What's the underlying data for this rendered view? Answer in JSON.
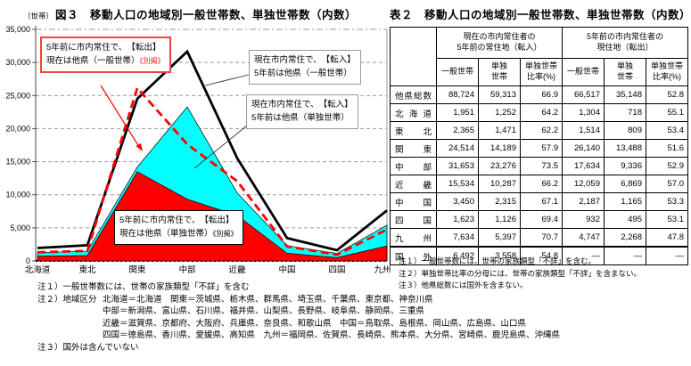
{
  "figure": {
    "unit_label": "（世帯）",
    "title": "図３　移動人口の地域別一般世帯数、単独世帯数（内数）",
    "annotations": {
      "out_general": {
        "line1": "5年前に市内常住で、　【転出】",
        "line2": "現在は他県（一般世帯）",
        "suffix": "《別掲》"
      },
      "in_general": {
        "line1": "現在市内常住で、　【転入】",
        "line2": "5年前は他県（一般世帯）"
      },
      "in_single": {
        "line1": "現在市内常住で、　【転入】",
        "line2": "5年前は他県（単独世帯）"
      },
      "out_single": {
        "line1": "5年前に市内常住で、　【転出】",
        "line2": "現在は他県（単独世帯）",
        "suffix": "《別掲》"
      }
    },
    "notes": {
      "note1": "注１）一般世帯数には、世帯の家族類型「不詳」を含む",
      "note2_label": "注２）地域区分",
      "note2_lines": [
        "北海道＝北海道　関東＝茨城県、栃木県、群馬県、埼玉県、千葉県、東京都、神奈川県",
        "中部＝新潟県、富山県、石川県、福井県、山梨県、長野県、岐阜県、静岡県、三重県",
        "近畿＝滋賀県、京都府、大阪府、兵庫県、奈良県、和歌山県　中国＝鳥取県、島根県、岡山県、広島県、山口県",
        "四国＝徳島県、香川県、愛媛県、高知県　九州＝福岡県、佐賀県、長崎県、熊本県、大分県、宮崎県、鹿児島県、沖縄県"
      ],
      "note3": "注３）国外は含んでいない"
    }
  },
  "chart_data": {
    "type": "area",
    "title": "図３　移動人口の地域別一般世帯数、単独世帯数（内数）",
    "unit": "世帯",
    "categories": [
      "北海道",
      "東北",
      "関東",
      "中部",
      "近畿",
      "中国",
      "四国",
      "九州"
    ],
    "ylim": [
      0,
      35000
    ],
    "ytick_step": 5000,
    "grid": true,
    "legend_position": "none (callout boxes on plot)",
    "series": [
      {
        "name": "転入・単独世帯（現在市内常住で5年前は他県）",
        "kind": "area",
        "color": "cyan",
        "values": [
          1252,
          1471,
          14189,
          23276,
          10287,
          2315,
          1126,
          5397
        ]
      },
      {
        "name": "転出・単独世帯（5年前に市内常住で現在は他県）《別掲》",
        "kind": "area",
        "color": "red",
        "values": [
          718,
          809,
          13488,
          9336,
          6869,
          1165,
          495,
          2268
        ]
      },
      {
        "name": "転入・一般世帯（現在市内常住で5年前は他県）",
        "kind": "line",
        "color": "black",
        "dashed": false,
        "values": [
          1951,
          2365,
          24514,
          31653,
          15534,
          3450,
          1623,
          7634
        ]
      },
      {
        "name": "転出・一般世帯（5年前に市内常住で現在は他県）《別掲》",
        "kind": "line",
        "color": "red",
        "dashed": true,
        "values": [
          1304,
          1514,
          26140,
          17634,
          12059,
          2187,
          932,
          4747
        ]
      }
    ]
  },
  "table": {
    "title": "表２　移動人口の地域別一般世帯数、単独世帯数（内数）",
    "group_headers": [
      "現在の市内常住者の\n5年前の常住地（転入）",
      "5年前の市内常住者の\n現住地（転出）"
    ],
    "col_headers": [
      "一般世帯",
      "単独\n世帯",
      "単独世帯\n比率(%)",
      "一般世帯",
      "単独\n世帯",
      "単独世帯\n比率(%)"
    ],
    "rows": [
      {
        "label": "他県総数",
        "values": [
          "88,724",
          "59,313",
          "66.9",
          "66,517",
          "35,148",
          "52.8"
        ]
      },
      {
        "label": "北海道",
        "values": [
          "1,951",
          "1,252",
          "64.2",
          "1,304",
          "718",
          "55.1"
        ]
      },
      {
        "label": "東北",
        "values": [
          "2,365",
          "1,471",
          "62.2",
          "1,514",
          "809",
          "53.4"
        ]
      },
      {
        "label": "関東",
        "values": [
          "24,514",
          "14,189",
          "57.9",
          "26,140",
          "13,488",
          "51.6"
        ]
      },
      {
        "label": "中部",
        "values": [
          "31,653",
          "23,276",
          "73.5",
          "17,634",
          "9,336",
          "52.9"
        ]
      },
      {
        "label": "近畿",
        "values": [
          "15,534",
          "10,287",
          "66.2",
          "12,059",
          "6,869",
          "57.0"
        ]
      },
      {
        "label": "中国",
        "values": [
          "3,450",
          "2,315",
          "67.1",
          "2,187",
          "1,165",
          "53.3"
        ]
      },
      {
        "label": "四国",
        "values": [
          "1,623",
          "1,126",
          "69.4",
          "932",
          "495",
          "53.1"
        ]
      },
      {
        "label": "九州",
        "values": [
          "7,634",
          "5,397",
          "70.7",
          "4,747",
          "2,268",
          "47.8"
        ]
      },
      {
        "label": "国外",
        "values": [
          "6,492",
          "3,558",
          "54.8",
          "―",
          "―",
          "―"
        ]
      }
    ],
    "notes": [
      "注１）一般世帯数には、世帯の家族類型「不詳」を含む。",
      "注２）単独世帯比率の分母には、世帯の家族類型「不詳」を含まない。",
      "注３）他県総数には国外を含まない。"
    ]
  },
  "colors": {
    "cyan": "#00FFFF",
    "red": "#FF0000",
    "black": "#000000",
    "grid": "#999999",
    "annotation_border_red": "#E94444"
  }
}
